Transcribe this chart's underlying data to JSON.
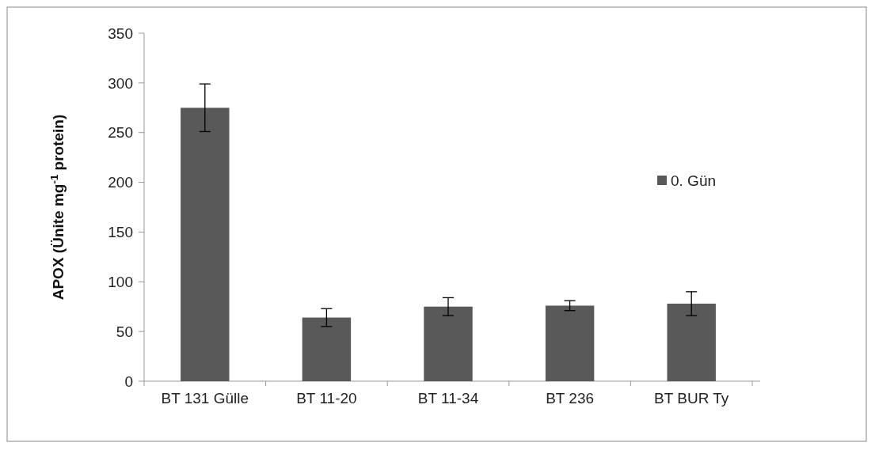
{
  "chart_data": {
    "type": "bar",
    "ylabel": "APOX (Ünite mg$^{-1}$ protein)",
    "categories": [
      "BT 131 Gülle",
      "BT 11-20",
      "BT 11-34",
      "BT 236",
      "BT BUR Ty"
    ],
    "series": [
      {
        "name": "0. Gün",
        "color": "#595959",
        "values": [
          275,
          64,
          75,
          76,
          78
        ],
        "errors": [
          24,
          9,
          9,
          5,
          12
        ]
      }
    ],
    "ylim": [
      0,
      350
    ],
    "yticks": [
      0,
      50,
      100,
      150,
      200,
      250,
      300,
      350
    ],
    "grid": false,
    "legend": "right"
  }
}
